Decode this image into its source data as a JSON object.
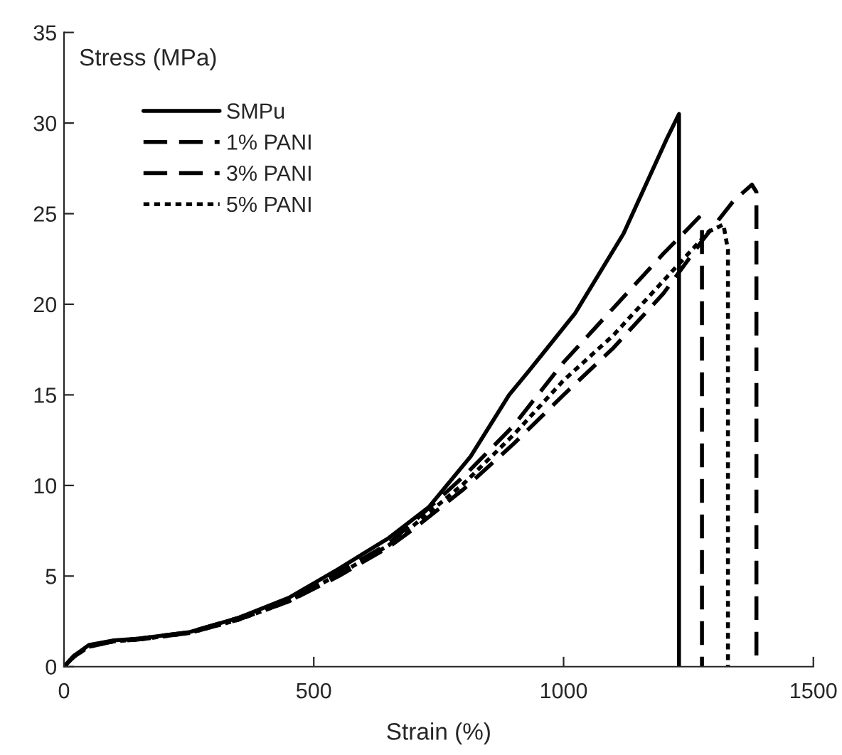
{
  "chart_data": {
    "type": "line",
    "xlabel": "Strain (%)",
    "ylabel": "Stress (MPa)",
    "xlim": [
      0,
      1500
    ],
    "xticks": [
      0,
      500,
      1000,
      1500
    ],
    "ylim": [
      0,
      35
    ],
    "yticks": [
      0,
      5,
      10,
      15,
      20,
      25,
      30,
      35
    ],
    "grid": false,
    "legend": "top left",
    "marker": "none",
    "series": [
      {
        "name": "SMPu",
        "color": "#000000",
        "line_style": "solid",
        "x": [
          0,
          20,
          50,
          100,
          150,
          250,
          350,
          450,
          550,
          650,
          730,
          814,
          891,
          930,
          1023,
          1120,
          1206,
          1231,
          1231
        ],
        "values": [
          0,
          0.6,
          1.2,
          1.45,
          1.55,
          1.9,
          2.7,
          3.8,
          5.4,
          7.1,
          8.8,
          11.6,
          15.0,
          16.3,
          19.5,
          23.9,
          29.1,
          30.5,
          0
        ]
      },
      {
        "name": "1% PANI",
        "color": "#000000",
        "line_style": "dashed",
        "x": [
          0,
          20,
          50,
          100,
          150,
          250,
          350,
          450,
          550,
          650,
          700,
          800,
          900,
          1000,
          1100,
          1200,
          1250,
          1271,
          1277,
          1277
        ],
        "values": [
          0,
          0.6,
          1.15,
          1.4,
          1.55,
          1.9,
          2.7,
          3.7,
          5.2,
          6.8,
          8.0,
          10.5,
          13.3,
          16.8,
          19.8,
          22.8,
          24.2,
          24.8,
          24.3,
          0
        ]
      },
      {
        "name": "3% PANI",
        "color": "#000000",
        "line_style": "dashed",
        "x": [
          0,
          20,
          50,
          100,
          150,
          250,
          350,
          450,
          550,
          650,
          700,
          800,
          900,
          1000,
          1100,
          1200,
          1280,
          1340,
          1377,
          1386,
          1386
        ],
        "values": [
          0,
          0.55,
          1.1,
          1.4,
          1.5,
          1.85,
          2.6,
          3.6,
          5.0,
          6.6,
          7.6,
          9.8,
          12.3,
          15.0,
          17.6,
          20.6,
          23.6,
          25.7,
          26.6,
          26.2,
          0
        ]
      },
      {
        "name": "5% PANI",
        "color": "#000000",
        "line_style": "dotted",
        "x": [
          0,
          20,
          50,
          100,
          150,
          250,
          350,
          450,
          550,
          650,
          700,
          800,
          900,
          1000,
          1100,
          1200,
          1250,
          1290,
          1320,
          1329,
          1329
        ],
        "values": [
          0,
          0.55,
          1.1,
          1.4,
          1.5,
          1.85,
          2.6,
          3.6,
          5.1,
          6.7,
          7.8,
          10.1,
          12.8,
          15.8,
          18.3,
          21.3,
          22.8,
          24.0,
          24.4,
          23.0,
          0
        ]
      }
    ]
  }
}
